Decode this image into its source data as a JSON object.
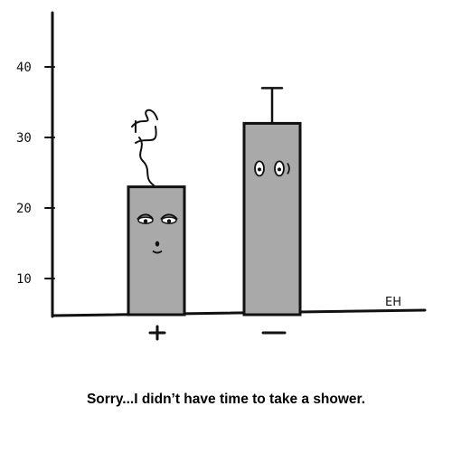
{
  "cartoon": {
    "caption": "Sorry...I didn’t have time to take a shower.",
    "signature": "EH",
    "y_ticks": [
      {
        "label": "40",
        "value": 40
      },
      {
        "label": "30",
        "value": 30
      },
      {
        "label": "20",
        "value": 20
      },
      {
        "label": "10",
        "value": 10
      }
    ],
    "categories": [
      {
        "label": "+",
        "value": 23,
        "face": "smelly-sleepy"
      },
      {
        "label": "−",
        "value": 32,
        "error_top": 37,
        "face": "wide-eyed"
      }
    ],
    "colors": {
      "ink": "#111111",
      "bar_fill": "#a9a9a9"
    }
  }
}
